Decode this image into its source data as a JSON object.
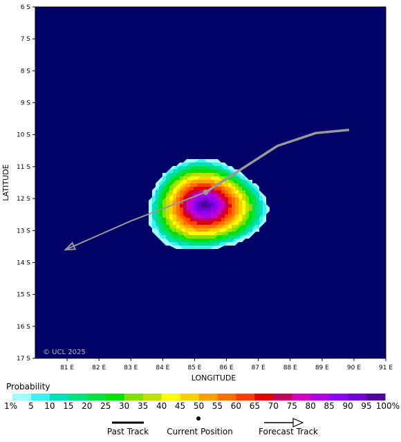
{
  "map": {
    "xlabel": "LONGITUDE",
    "ylabel": "LATITUDE",
    "copyright": "© UCL 2025",
    "lon_ticks": [
      "81 E",
      "82 E",
      "83 E",
      "84 E",
      "85 E",
      "86 E",
      "87 E",
      "88 E",
      "89 E",
      "90 E",
      "91 E"
    ],
    "lat_ticks": [
      "6 S",
      "7 S",
      "8 S",
      "9 S",
      "10 S",
      "11 S",
      "12 S",
      "13 S",
      "14 S",
      "15 S",
      "16 S",
      "17 S"
    ],
    "lon_range": [
      80,
      91
    ],
    "lat_range": [
      -6,
      -17
    ],
    "background_color": "#000066"
  },
  "probability": {
    "title": "Probability",
    "labels": [
      "1%",
      "5",
      "10",
      "15",
      "20",
      "25",
      "30",
      "35",
      "40",
      "45",
      "50",
      "55",
      "60",
      "65",
      "70",
      "75",
      "80",
      "85",
      "90",
      "95",
      "100%"
    ],
    "colors": [
      "#a0ffff",
      "#40f0f0",
      "#00e0c0",
      "#00e080",
      "#00e040",
      "#00e000",
      "#80e000",
      "#c0e000",
      "#ffff00",
      "#ffd000",
      "#ffa000",
      "#ff7000",
      "#ff4000",
      "#e00000",
      "#c00060",
      "#d000c0",
      "#b000e0",
      "#9000f0",
      "#7000d0",
      "#5000a0"
    ],
    "center": {
      "lon": 85.35,
      "lat": -12.2
    }
  },
  "track": {
    "color": "#999999",
    "past": [
      {
        "lon": 89.85,
        "lat": -9.85
      },
      {
        "lon": 88.8,
        "lat": -9.95
      },
      {
        "lon": 87.6,
        "lat": -10.35
      },
      {
        "lon": 85.35,
        "lat": -11.8
      }
    ],
    "current": {
      "lon": 85.35,
      "lat": -11.8
    },
    "forecast": [
      {
        "lon": 85.35,
        "lat": -11.8
      },
      {
        "lon": 83.0,
        "lat": -12.7
      },
      {
        "lon": 80.95,
        "lat": -13.6
      }
    ]
  },
  "key": {
    "past_track": "Past Track",
    "current_position": "Current Position",
    "forecast_track": "Forecast Track"
  }
}
